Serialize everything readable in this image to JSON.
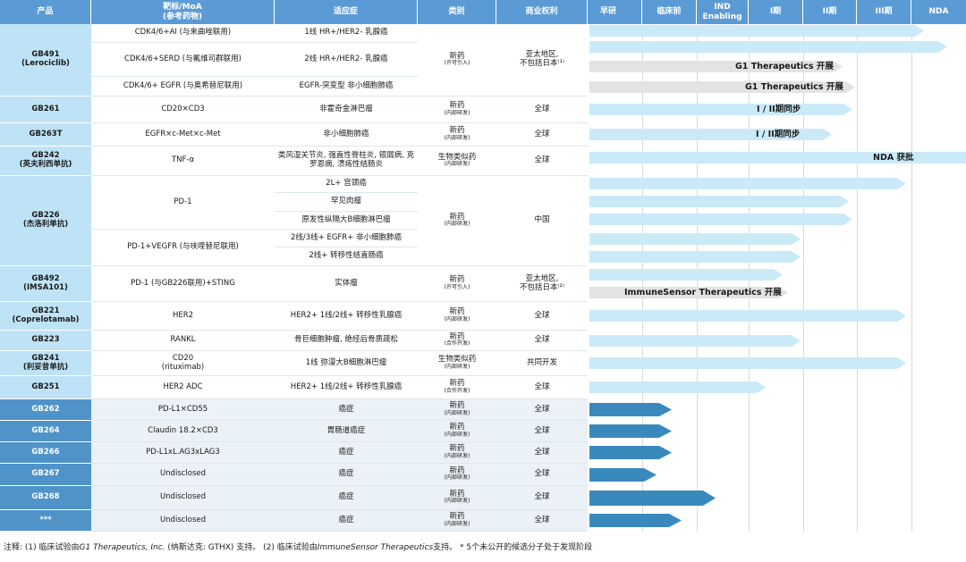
{
  "columns": {
    "product": "产品",
    "target": "靶标/MoA",
    "target_sub": "(参考药物)",
    "indication": "适应症",
    "category": "类别",
    "rights": "商业权利",
    "stages": [
      "早研",
      "临床前",
      "IND Enabling",
      "I期",
      "II期",
      "III期",
      "NDA"
    ]
  },
  "rows": [
    {
      "product": "GB491",
      "product_sub": "(Lerociclib)",
      "target": "CDK4/6+AI (与来曲唑联用)",
      "indication": "1线 HR+/HER2- 乳腺癌",
      "category": "新药",
      "category_sub": "(许可引入)",
      "rights": "亚太地区,",
      "rights_line2": "不包括日本⁽¹⁾",
      "bar_stage": "NDA",
      "bar_label": ""
    },
    {
      "target": "CDK4/6+SERD (与氟维司群联用)",
      "indication": "2线 HR+/HER2- 乳腺癌",
      "bar_stage": "NDA",
      "bar_label": "G1 Therapeutics 开展"
    },
    {
      "target": "CDK4/6+ EGFR (与奥希替尼联用)",
      "indication": "EGFR-突变型 非小细胞肺癌",
      "bar_stage": "III期",
      "bar_label": "G1 Therapeutics 开展"
    },
    {
      "product": "GB261",
      "target": "CD20×CD3",
      "indication": "非霍奇金淋巴瘤",
      "category": "新药",
      "category_sub": "(内部研发)",
      "rights": "全球",
      "bar_label": "I / II期同步"
    },
    {
      "product": "GB263T",
      "target": "EGFR×c-Met×c-Met",
      "indication": "非小细胞肺癌",
      "category": "新药",
      "category_sub": "(内部研发)",
      "rights": "全球",
      "bar_label": "I / II期同步"
    },
    {
      "product": "GB242",
      "product_sub": "(英夫利西单抗)",
      "target": "TNF-α",
      "indication": "类风湿关节炎, 强直性脊柱炎, 银屑病, 克罗恩病, 溃疡性结肠炎",
      "category": "生物类似药",
      "category_sub": "(内部研发)",
      "rights": "全球",
      "bar_label": "NDA 获批"
    },
    {
      "product": "GB226",
      "product_sub": "(杰洛利单抗)",
      "target": "PD-1",
      "indication": "2L+ 宫颈癌",
      "category": "新药",
      "category_sub": "(内部研发)",
      "rights": "中国"
    },
    {
      "indication": "罕见肉瘤"
    },
    {
      "indication": "原发性纵隔大B细胞淋巴瘤"
    },
    {
      "target": "PD-1+VEGFR (与呋喹替尼联用)",
      "indication": "2线/3线+ EGFR+ 非小细胞肺癌"
    },
    {
      "indication": "2线+ 转移性结直肠癌"
    },
    {
      "product": "GB492",
      "product_sub": "(IMSA101)",
      "target": "PD-1 (与GB226联用)+STING",
      "indication": "实体瘤",
      "category": "新药",
      "category_sub": "(许可引入)",
      "rights": "亚太地区,",
      "rights_line2": "不包括日本⁽²⁾",
      "bar_label": "ImmuneSensor Therapeutics 开展"
    },
    {
      "product": "GB221",
      "product_sub": "(Coprelotamab)",
      "target": "HER2",
      "indication": "HER2+ 1线/2线+ 转移性乳腺癌",
      "category": "新药",
      "category_sub": "(内部研发)",
      "rights": "全球"
    },
    {
      "product": "GB223",
      "target": "RANKL",
      "indication": "骨巨细胞肿瘤, 绝经后骨质疏松",
      "category": "新药",
      "category_sub": "(合作开发)",
      "rights": "全球"
    },
    {
      "product": "GB241",
      "product_sub": "(利妥昔单抗)",
      "target": "CD20",
      "target_sub": "(rituximab)",
      "indication": "1线 弥漫大B细胞淋巴瘤",
      "category": "生物类似药",
      "category_sub": "(内部研发)",
      "rights": "共同开发"
    },
    {
      "product": "GB251",
      "target": "HER2 ADC",
      "indication": "HER2+ 1线/2线+ 转移性乳腺癌",
      "category": "新药",
      "category_sub": "(合作开发)",
      "rights": "全球"
    },
    {
      "product": "GB262",
      "target": "PD-L1×CD55",
      "indication": "癌症",
      "category": "新药",
      "category_sub": "(内部研发)",
      "rights": "全球"
    },
    {
      "product": "GB264",
      "target": "Claudin 18.2×CD3",
      "indication": "胃肠道癌症",
      "category": "新药",
      "category_sub": "(内部研发)",
      "rights": "全球"
    },
    {
      "product": "GB266",
      "target": "PD-L1xL.AG3xLAG3",
      "indication": "癌症",
      "category": "新药",
      "category_sub": "(内部研发)",
      "rights": "全球"
    },
    {
      "product": "GB267",
      "target": "Undisclosed",
      "indication": "癌症",
      "category": "新药",
      "category_sub": "(内部研发)",
      "rights": "全球"
    },
    {
      "product": "GB268",
      "target": "Undisclosed",
      "indication": "癌症",
      "category": "新药",
      "category_sub": "(内部研发)",
      "rights": "全球"
    },
    {
      "product": "***",
      "target": "Undisclosed",
      "indication": "癌症",
      "category": "新药",
      "category_sub": "(内部研发)",
      "rights": "全球"
    }
  ],
  "footnote": {
    "prefix": "注释: (1) 临床试验由",
    "g1": "G1 Therapeutics, Inc.",
    "mid": " (纳斯达克: GTHX) 支持。 (2) 临床试验由",
    "ims": "ImmuneSensor Therapeutics",
    "suffix": "支持。 * 5个未公开的候选分子处于发现阶段"
  },
  "colors": {
    "header": "#5b9bd5",
    "product_light": "#bfe3f6",
    "product_dark": "#4f93c9",
    "bar_light": "#cbeaf8",
    "bar_gray": "#e3e3e3",
    "bar_dark": "#3a89bd"
  }
}
